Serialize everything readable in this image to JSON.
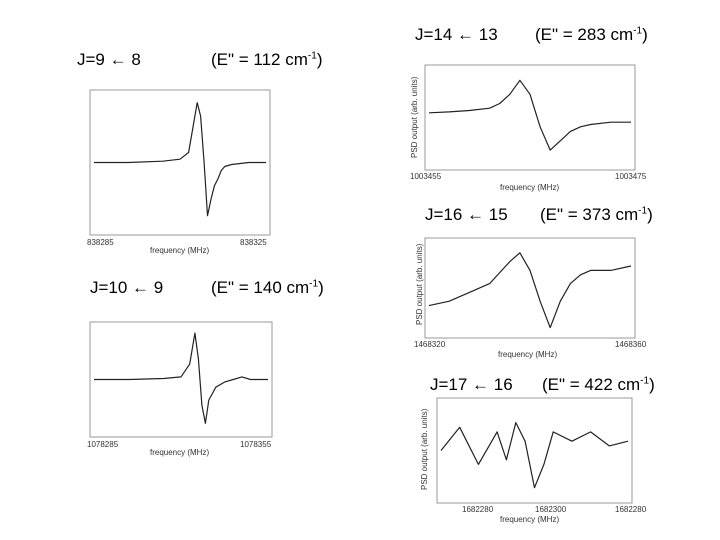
{
  "titles": {
    "j9": {
      "trans": "J=9 ← 8",
      "energy": "(E\" = 112 cm",
      "unit_sup": "-1",
      "close": ")"
    },
    "j10": {
      "trans": "J=10 ← 9",
      "energy": "(E\" = 140 cm",
      "unit_sup": "-1",
      "close": ")"
    },
    "j14": {
      "trans": "J=14 ← 13",
      "energy": "(E\" = 283 cm",
      "unit_sup": "-1",
      "close": ")"
    },
    "j16": {
      "trans": "J=16 ← 15",
      "energy": "(E\" = 373 cm",
      "unit_sup": "-1",
      "close": ")"
    },
    "j17": {
      "trans": "J=17 ← 16",
      "energy": "(E\" = 422 cm",
      "unit_sup": "-1",
      "close": ")"
    }
  },
  "chart_data": [
    {
      "id": "j9",
      "type": "line",
      "xlabel": "frequency (MHz)",
      "ylabel": "",
      "xlim_labels": [
        "838285",
        "838325"
      ],
      "x": [
        0,
        0.2,
        0.4,
        0.5,
        0.55,
        0.6,
        0.62,
        0.64,
        0.66,
        0.68,
        0.7,
        0.72,
        0.74,
        0.76,
        0.8,
        0.9,
        1.0
      ],
      "y": [
        0.0,
        0.0,
        0.02,
        0.05,
        0.15,
        0.9,
        0.7,
        0.0,
        -0.8,
        -0.55,
        -0.35,
        -0.25,
        -0.12,
        -0.06,
        -0.03,
        0.0,
        0.0
      ],
      "grid": false
    },
    {
      "id": "j10",
      "type": "line",
      "xlabel": "frequency (MHz)",
      "ylabel": "",
      "xlim_labels": [
        "1078285",
        "1078355"
      ],
      "x": [
        0,
        0.2,
        0.4,
        0.5,
        0.55,
        0.58,
        0.6,
        0.62,
        0.64,
        0.66,
        0.7,
        0.75,
        0.8,
        0.85,
        0.9,
        1.0
      ],
      "y": [
        0.0,
        0.0,
        0.02,
        0.05,
        0.3,
        0.9,
        0.4,
        -0.5,
        -0.85,
        -0.4,
        -0.15,
        -0.05,
        0.0,
        0.05,
        0.0,
        0.0
      ],
      "grid": false
    },
    {
      "id": "j14",
      "type": "line",
      "xlabel": "frequency (MHz)",
      "ylabel": "PSD output (arb. units)",
      "xlim_labels": [
        "1003455",
        "1003475"
      ],
      "x": [
        0,
        0.1,
        0.2,
        0.3,
        0.35,
        0.4,
        0.45,
        0.5,
        0.55,
        0.6,
        0.65,
        0.7,
        0.75,
        0.8,
        0.9,
        1.0
      ],
      "y": [
        0.1,
        0.12,
        0.15,
        0.2,
        0.3,
        0.5,
        0.8,
        0.5,
        -0.2,
        -0.7,
        -0.5,
        -0.3,
        -0.2,
        -0.15,
        -0.1,
        -0.1
      ],
      "grid": false
    },
    {
      "id": "j16",
      "type": "line",
      "xlabel": "frequency (MHz)",
      "ylabel": "PSD output (arb. units)",
      "xlim_labels": [
        "1468320",
        "1468360"
      ],
      "x": [
        0,
        0.1,
        0.2,
        0.3,
        0.4,
        0.45,
        0.5,
        0.55,
        0.6,
        0.65,
        0.7,
        0.75,
        0.8,
        0.9,
        1.0
      ],
      "y": [
        -0.4,
        -0.3,
        -0.1,
        0.1,
        0.6,
        0.8,
        0.4,
        -0.3,
        -0.9,
        -0.3,
        0.1,
        0.3,
        0.4,
        0.4,
        0.5
      ],
      "grid": false
    },
    {
      "id": "j17",
      "type": "line",
      "xlabel": "frequency (MHz)",
      "ylabel": "PSD output (arb. units)",
      "xlim_labels": [
        "1682280",
        "1682300",
        "1682280"
      ],
      "x": [
        0,
        0.1,
        0.2,
        0.3,
        0.35,
        0.4,
        0.45,
        0.5,
        0.55,
        0.6,
        0.7,
        0.8,
        0.9,
        1.0
      ],
      "y": [
        0.0,
        0.5,
        -0.3,
        0.4,
        -0.2,
        0.6,
        0.2,
        -0.8,
        -0.3,
        0.4,
        0.2,
        0.4,
        0.1,
        0.2
      ],
      "grid": false
    }
  ]
}
